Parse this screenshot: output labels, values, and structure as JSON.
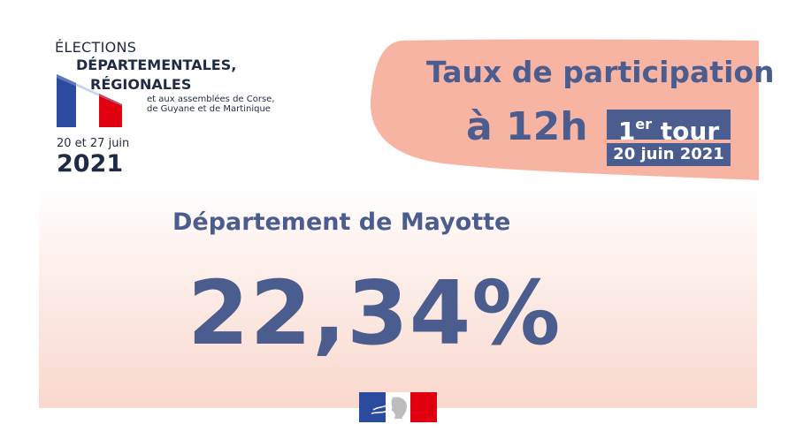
{
  "logo": {
    "line1": "ÉLECTIONS",
    "line2": "DÉPARTEMENTALES,",
    "line3": "RÉGIONALES",
    "line4": "et aux assemblées de Corse,",
    "line5": "de Guyane et de Martinique",
    "dates": "20 et 27 juin",
    "year": "2021"
  },
  "header": {
    "title_line1": "Taux de participation",
    "title_line2": "à 12h",
    "tour_number": "1",
    "tour_suffix": "er",
    "tour_word": "tour",
    "tour_date": "20 juin 2021"
  },
  "main": {
    "department": "Département de Mayotte",
    "percentage": "22,34%"
  },
  "colors": {
    "accent": "#4b5d8f",
    "banner": "#f8b4a3",
    "flag_blue": "#2c4a9e",
    "flag_red": "#e1000f"
  }
}
